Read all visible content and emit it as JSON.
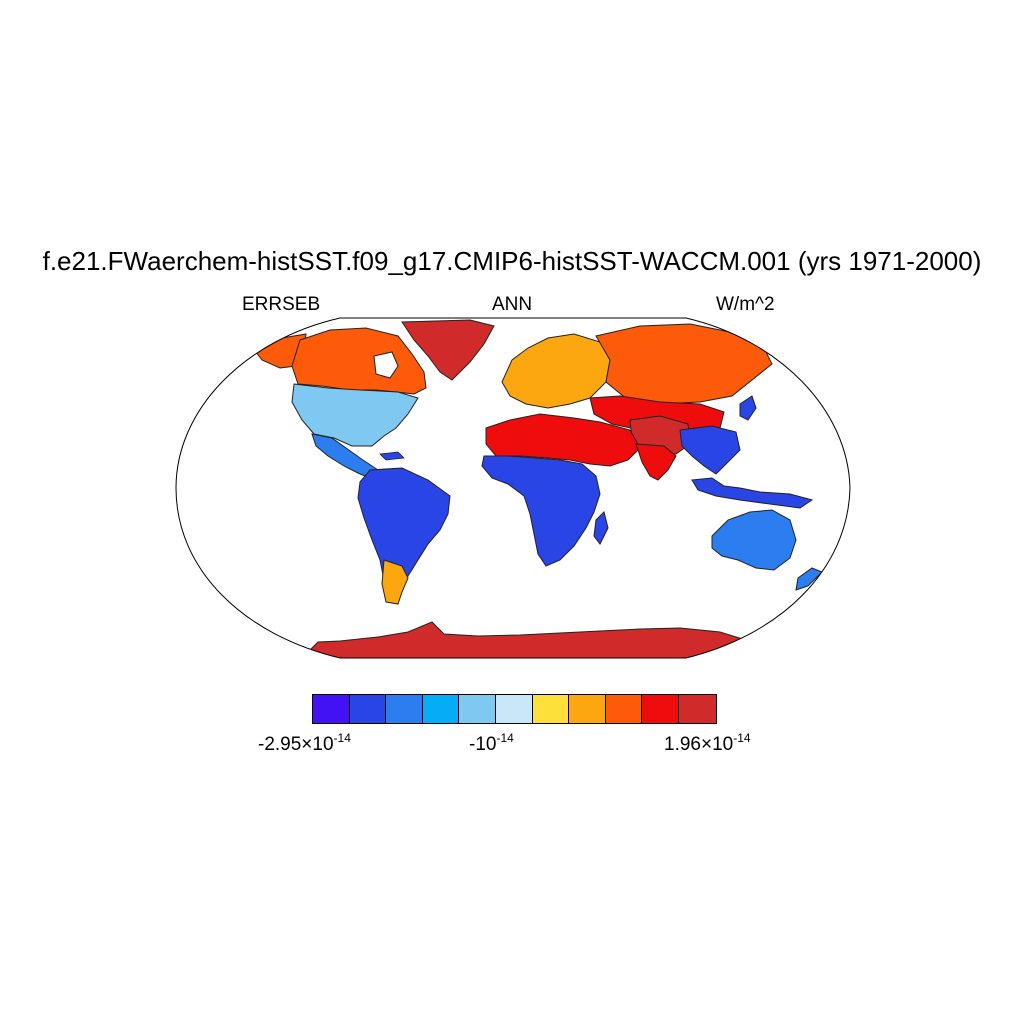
{
  "title": "f.e21.FWaerchem-histSST.f09_g17.CMIP6-histSST-WACCM.001 (yrs 1971-2000)",
  "left_label": "ERRSEB",
  "center_label": "ANN",
  "right_label": "W/m^2",
  "projection": "Robinson",
  "colorbar": {
    "colors": [
      "#4212f4",
      "#2a45e6",
      "#2c7ef0",
      "#06acf6",
      "#7ec8f2",
      "#c9e7f7",
      "#fde13a",
      "#fca70f",
      "#fd5a09",
      "#ee0c0c",
      "#d12a2a"
    ],
    "labels": [
      {
        "mantissa": "-2.95×10",
        "exponent": "-14"
      },
      {
        "mantissa": "-10",
        "exponent": "-14"
      },
      {
        "mantissa": "1.96×10",
        "exponent": "-14"
      }
    ]
  },
  "regions": [
    {
      "name": "Antarctica",
      "color": "#d12a2a"
    },
    {
      "name": "Greenland",
      "color": "#d12a2a"
    },
    {
      "name": "Canada",
      "color": "#fd5a09"
    },
    {
      "name": "Alaska",
      "color": "#fd5a09"
    },
    {
      "name": "United States",
      "color": "#7ec8f2"
    },
    {
      "name": "Central America",
      "color": "#2c7ef0"
    },
    {
      "name": "South America",
      "color": "#2a45e6"
    },
    {
      "name": "Patagonia",
      "color": "#fca70f"
    },
    {
      "name": "Europe",
      "color": "#fca70f"
    },
    {
      "name": "Northern Asia",
      "color": "#fd5a09"
    },
    {
      "name": "Central Asia",
      "color": "#ee0c0c"
    },
    {
      "name": "Tibet",
      "color": "#d12a2a"
    },
    {
      "name": "India",
      "color": "#ee0c0c"
    },
    {
      "name": "Southeast Asia",
      "color": "#2a45e6"
    },
    {
      "name": "Sahara and Arabia",
      "color": "#ee0c0c"
    },
    {
      "name": "Central and Southern Africa",
      "color": "#2a45e6"
    },
    {
      "name": "Madagascar",
      "color": "#2a45e6"
    },
    {
      "name": "Indonesia",
      "color": "#2a45e6"
    },
    {
      "name": "Australia",
      "color": "#2c7ef0"
    },
    {
      "name": "New Zealand",
      "color": "#2c7ef0"
    },
    {
      "name": "Japan",
      "color": "#2a45e6"
    }
  ]
}
